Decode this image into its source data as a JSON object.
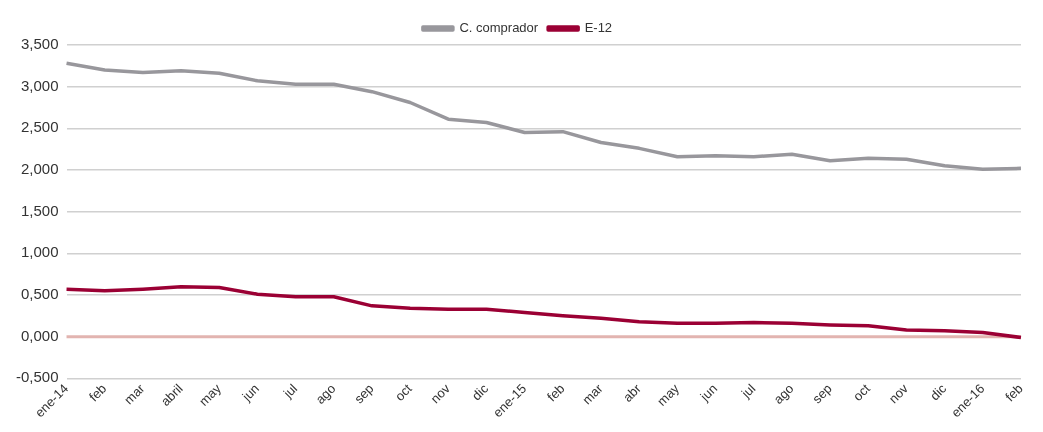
{
  "chart_data": {
    "type": "line",
    "categories": [
      "ene-14",
      "feb",
      "mar",
      "abril",
      "may",
      "jun",
      "jul",
      "ago",
      "sep",
      "oct",
      "nov",
      "dic",
      "ene-15",
      "feb",
      "mar",
      "abr",
      "may",
      "jun",
      "jul",
      "ago",
      "sep",
      "oct",
      "nov",
      "dic",
      "ene-16",
      "feb"
    ],
    "series": [
      {
        "name": "C. comprador",
        "color": "#98979c",
        "values": [
          3.28,
          3.2,
          3.17,
          3.19,
          3.16,
          3.07,
          3.03,
          3.03,
          2.94,
          2.81,
          2.61,
          2.57,
          2.45,
          2.46,
          2.33,
          2.26,
          2.16,
          2.17,
          2.16,
          2.19,
          2.11,
          2.14,
          2.13,
          2.05,
          2.01,
          2.02
        ]
      },
      {
        "name": "E-12",
        "color": "#9b0034",
        "values": [
          0.57,
          0.55,
          0.57,
          0.6,
          0.59,
          0.51,
          0.48,
          0.48,
          0.37,
          0.34,
          0.33,
          0.33,
          0.29,
          0.25,
          0.22,
          0.18,
          0.16,
          0.16,
          0.17,
          0.16,
          0.14,
          0.13,
          0.08,
          0.07,
          0.05,
          -0.01
        ]
      }
    ],
    "ylim": [
      -0.5,
      3.5
    ],
    "yticks": [
      {
        "value": -0.5,
        "label": "-0,500"
      },
      {
        "value": 0,
        "label": "0,000"
      },
      {
        "value": 0.5,
        "label": "0,500"
      },
      {
        "value": 1,
        "label": "1,000"
      },
      {
        "value": 1.5,
        "label": "1,500"
      },
      {
        "value": 2,
        "label": "2,000"
      },
      {
        "value": 2.5,
        "label": "2,500"
      },
      {
        "value": 3,
        "label": "3,000"
      },
      {
        "value": 3.5,
        "label": "3,500"
      }
    ],
    "ref_lines": [
      {
        "axis": "y",
        "value": 0,
        "color": "#e2b4b0"
      }
    ],
    "grid": "y",
    "legend": "top",
    "marker": "none",
    "line_style": "solid"
  }
}
